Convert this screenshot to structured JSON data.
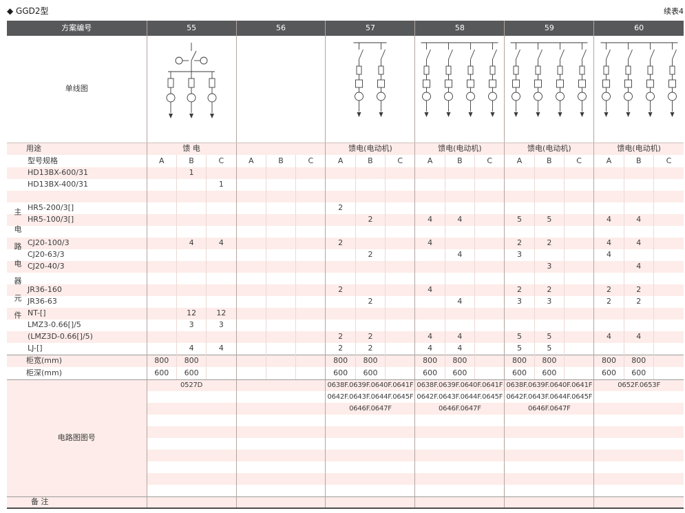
{
  "page": {
    "title": "◆ GGD2型",
    "continued": "续表4"
  },
  "header": {
    "scheme_label": "方案编号",
    "schemes": [
      "55",
      "56",
      "57",
      "58",
      "59",
      "60"
    ]
  },
  "diagram_section": {
    "label": "单线图",
    "diagrams": [
      {
        "scheme": "55",
        "type": "feeder",
        "branches": 3
      },
      {
        "scheme": "56",
        "type": "none",
        "branches": 0
      },
      {
        "scheme": "57",
        "type": "motor",
        "branches": 2
      },
      {
        "scheme": "58",
        "type": "motor",
        "branches": 4
      },
      {
        "scheme": "59",
        "type": "motor",
        "branches": 4
      },
      {
        "scheme": "60",
        "type": "motor",
        "branches": 4
      }
    ]
  },
  "usage_row": {
    "label": "用途",
    "values": [
      "馈 电",
      "",
      "馈电(电动机)",
      "馈电(电动机)",
      "馈电(电动机)",
      "馈电(电动机)"
    ]
  },
  "spec_row": {
    "label": "型号规格",
    "subcols": [
      "A",
      "B",
      "C",
      "A",
      "B",
      "C",
      "A",
      "B",
      "C",
      "A",
      "B",
      "C",
      "A",
      "B",
      "C",
      "A",
      "B",
      "C"
    ]
  },
  "side_label": "主电路电器元件",
  "component_rows": [
    {
      "label": "HD13BX-600/31",
      "values": [
        "",
        "1",
        "",
        "",
        "",
        "",
        "",
        "",
        "",
        "",
        "",
        "",
        "",
        "",
        "",
        "",
        "",
        ""
      ]
    },
    {
      "label": "HD13BX-400/31",
      "values": [
        "",
        "",
        "1",
        "",
        "",
        "",
        "",
        "",
        "",
        "",
        "",
        "",
        "",
        "",
        "",
        "",
        "",
        ""
      ]
    },
    {
      "label": "",
      "values": [
        "",
        "",
        "",
        "",
        "",
        "",
        "",
        "",
        "",
        "",
        "",
        "",
        "",
        "",
        "",
        "",
        "",
        ""
      ]
    },
    {
      "label": "HR5-200/3[]",
      "values": [
        "",
        "",
        "",
        "",
        "",
        "",
        "2",
        "",
        "",
        "",
        "",
        "",
        "",
        "",
        "",
        "",
        "",
        ""
      ]
    },
    {
      "label": "HR5-100/3[]",
      "values": [
        "",
        "",
        "",
        "",
        "",
        "",
        "",
        "2",
        "",
        "4",
        "4",
        "",
        "5",
        "5",
        "",
        "4",
        "4",
        ""
      ]
    },
    {
      "label": "",
      "values": [
        "",
        "",
        "",
        "",
        "",
        "",
        "",
        "",
        "",
        "",
        "",
        "",
        "",
        "",
        "",
        "",
        "",
        ""
      ]
    },
    {
      "label": "CJ20-100/3",
      "values": [
        "",
        "4",
        "4",
        "",
        "",
        "",
        "2",
        "",
        "",
        "4",
        "",
        "",
        "2",
        "2",
        "",
        "4",
        "4",
        ""
      ]
    },
    {
      "label": "CJ20-63/3",
      "values": [
        "",
        "",
        "",
        "",
        "",
        "",
        "",
        "2",
        "",
        "",
        "4",
        "",
        "3",
        "",
        "",
        "4",
        "",
        ""
      ]
    },
    {
      "label": "CJ20-40/3",
      "values": [
        "",
        "",
        "",
        "",
        "",
        "",
        "",
        "",
        "",
        "",
        "",
        "",
        "",
        "3",
        "",
        "",
        "4",
        ""
      ]
    },
    {
      "label": "",
      "values": [
        "",
        "",
        "",
        "",
        "",
        "",
        "",
        "",
        "",
        "",
        "",
        "",
        "",
        "",
        "",
        "",
        "",
        ""
      ]
    },
    {
      "label": "JR36-160",
      "values": [
        "",
        "",
        "",
        "",
        "",
        "",
        "2",
        "",
        "",
        "4",
        "",
        "",
        "2",
        "2",
        "",
        "2",
        "2",
        ""
      ]
    },
    {
      "label": "JR36-63",
      "values": [
        "",
        "",
        "",
        "",
        "",
        "",
        "",
        "2",
        "",
        "",
        "4",
        "",
        "3",
        "3",
        "",
        "2",
        "2",
        ""
      ]
    },
    {
      "label": "NT-[]",
      "values": [
        "",
        "12",
        "12",
        "",
        "",
        "",
        "",
        "",
        "",
        "",
        "",
        "",
        "",
        "",
        "",
        "",
        "",
        ""
      ]
    },
    {
      "label": "LMZ3-0.66[]/5",
      "values": [
        "",
        "3",
        "3",
        "",
        "",
        "",
        "",
        "",
        "",
        "",
        "",
        "",
        "",
        "",
        "",
        "",
        "",
        ""
      ]
    },
    {
      "label": "(LMZ3D-0.66[]/5)",
      "values": [
        "",
        "",
        "",
        "",
        "",
        "",
        "2",
        "2",
        "",
        "4",
        "4",
        "",
        "5",
        "5",
        "",
        "4",
        "4",
        ""
      ]
    },
    {
      "label": "LJ-[]",
      "values": [
        "",
        "4",
        "4",
        "",
        "",
        "",
        "2",
        "2",
        "",
        "4",
        "4",
        "",
        "5",
        "5",
        "",
        "",
        "",
        ""
      ]
    }
  ],
  "width_row": {
    "label": "柜宽(mm)",
    "values": [
      "800",
      "800",
      "",
      "",
      "",
      "",
      "800",
      "800",
      "",
      "800",
      "800",
      "",
      "800",
      "800",
      "",
      "800",
      "800",
      ""
    ]
  },
  "depth_row": {
    "label": "柜深(mm)",
    "values": [
      "600",
      "600",
      "",
      "",
      "",
      "",
      "600",
      "600",
      "",
      "600",
      "600",
      "",
      "600",
      "600",
      "",
      "600",
      "600",
      ""
    ]
  },
  "circuit_section": {
    "label": "电路图图号",
    "rows": [
      [
        "0527D",
        "",
        "0638F.0639F.0640F.0641F",
        "0638F.0639F.0640F.0641F",
        "0638F.0639F.0640F.0641F",
        "0652F.0653F"
      ],
      [
        "",
        "",
        "0642F.0643F.0644F.0645F",
        "0642F.0643F.0644F.0645F",
        "0642F.0643F.0644F.0645F",
        ""
      ],
      [
        "",
        "",
        "0646F.0647F",
        "0646F.0647F",
        "0646F.0647F",
        ""
      ],
      [
        "",
        "",
        "",
        "",
        "",
        ""
      ],
      [
        "",
        "",
        "",
        "",
        "",
        ""
      ],
      [
        "",
        "",
        "",
        "",
        "",
        ""
      ],
      [
        "",
        "",
        "",
        "",
        "",
        ""
      ],
      [
        "",
        "",
        "",
        "",
        "",
        ""
      ],
      [
        "",
        "",
        "",
        "",
        "",
        ""
      ],
      [
        "",
        "",
        "",
        "",
        "",
        ""
      ]
    ]
  },
  "remark_row": {
    "label": "备 注",
    "values": [
      "",
      "",
      "",
      "",
      "",
      ""
    ]
  }
}
